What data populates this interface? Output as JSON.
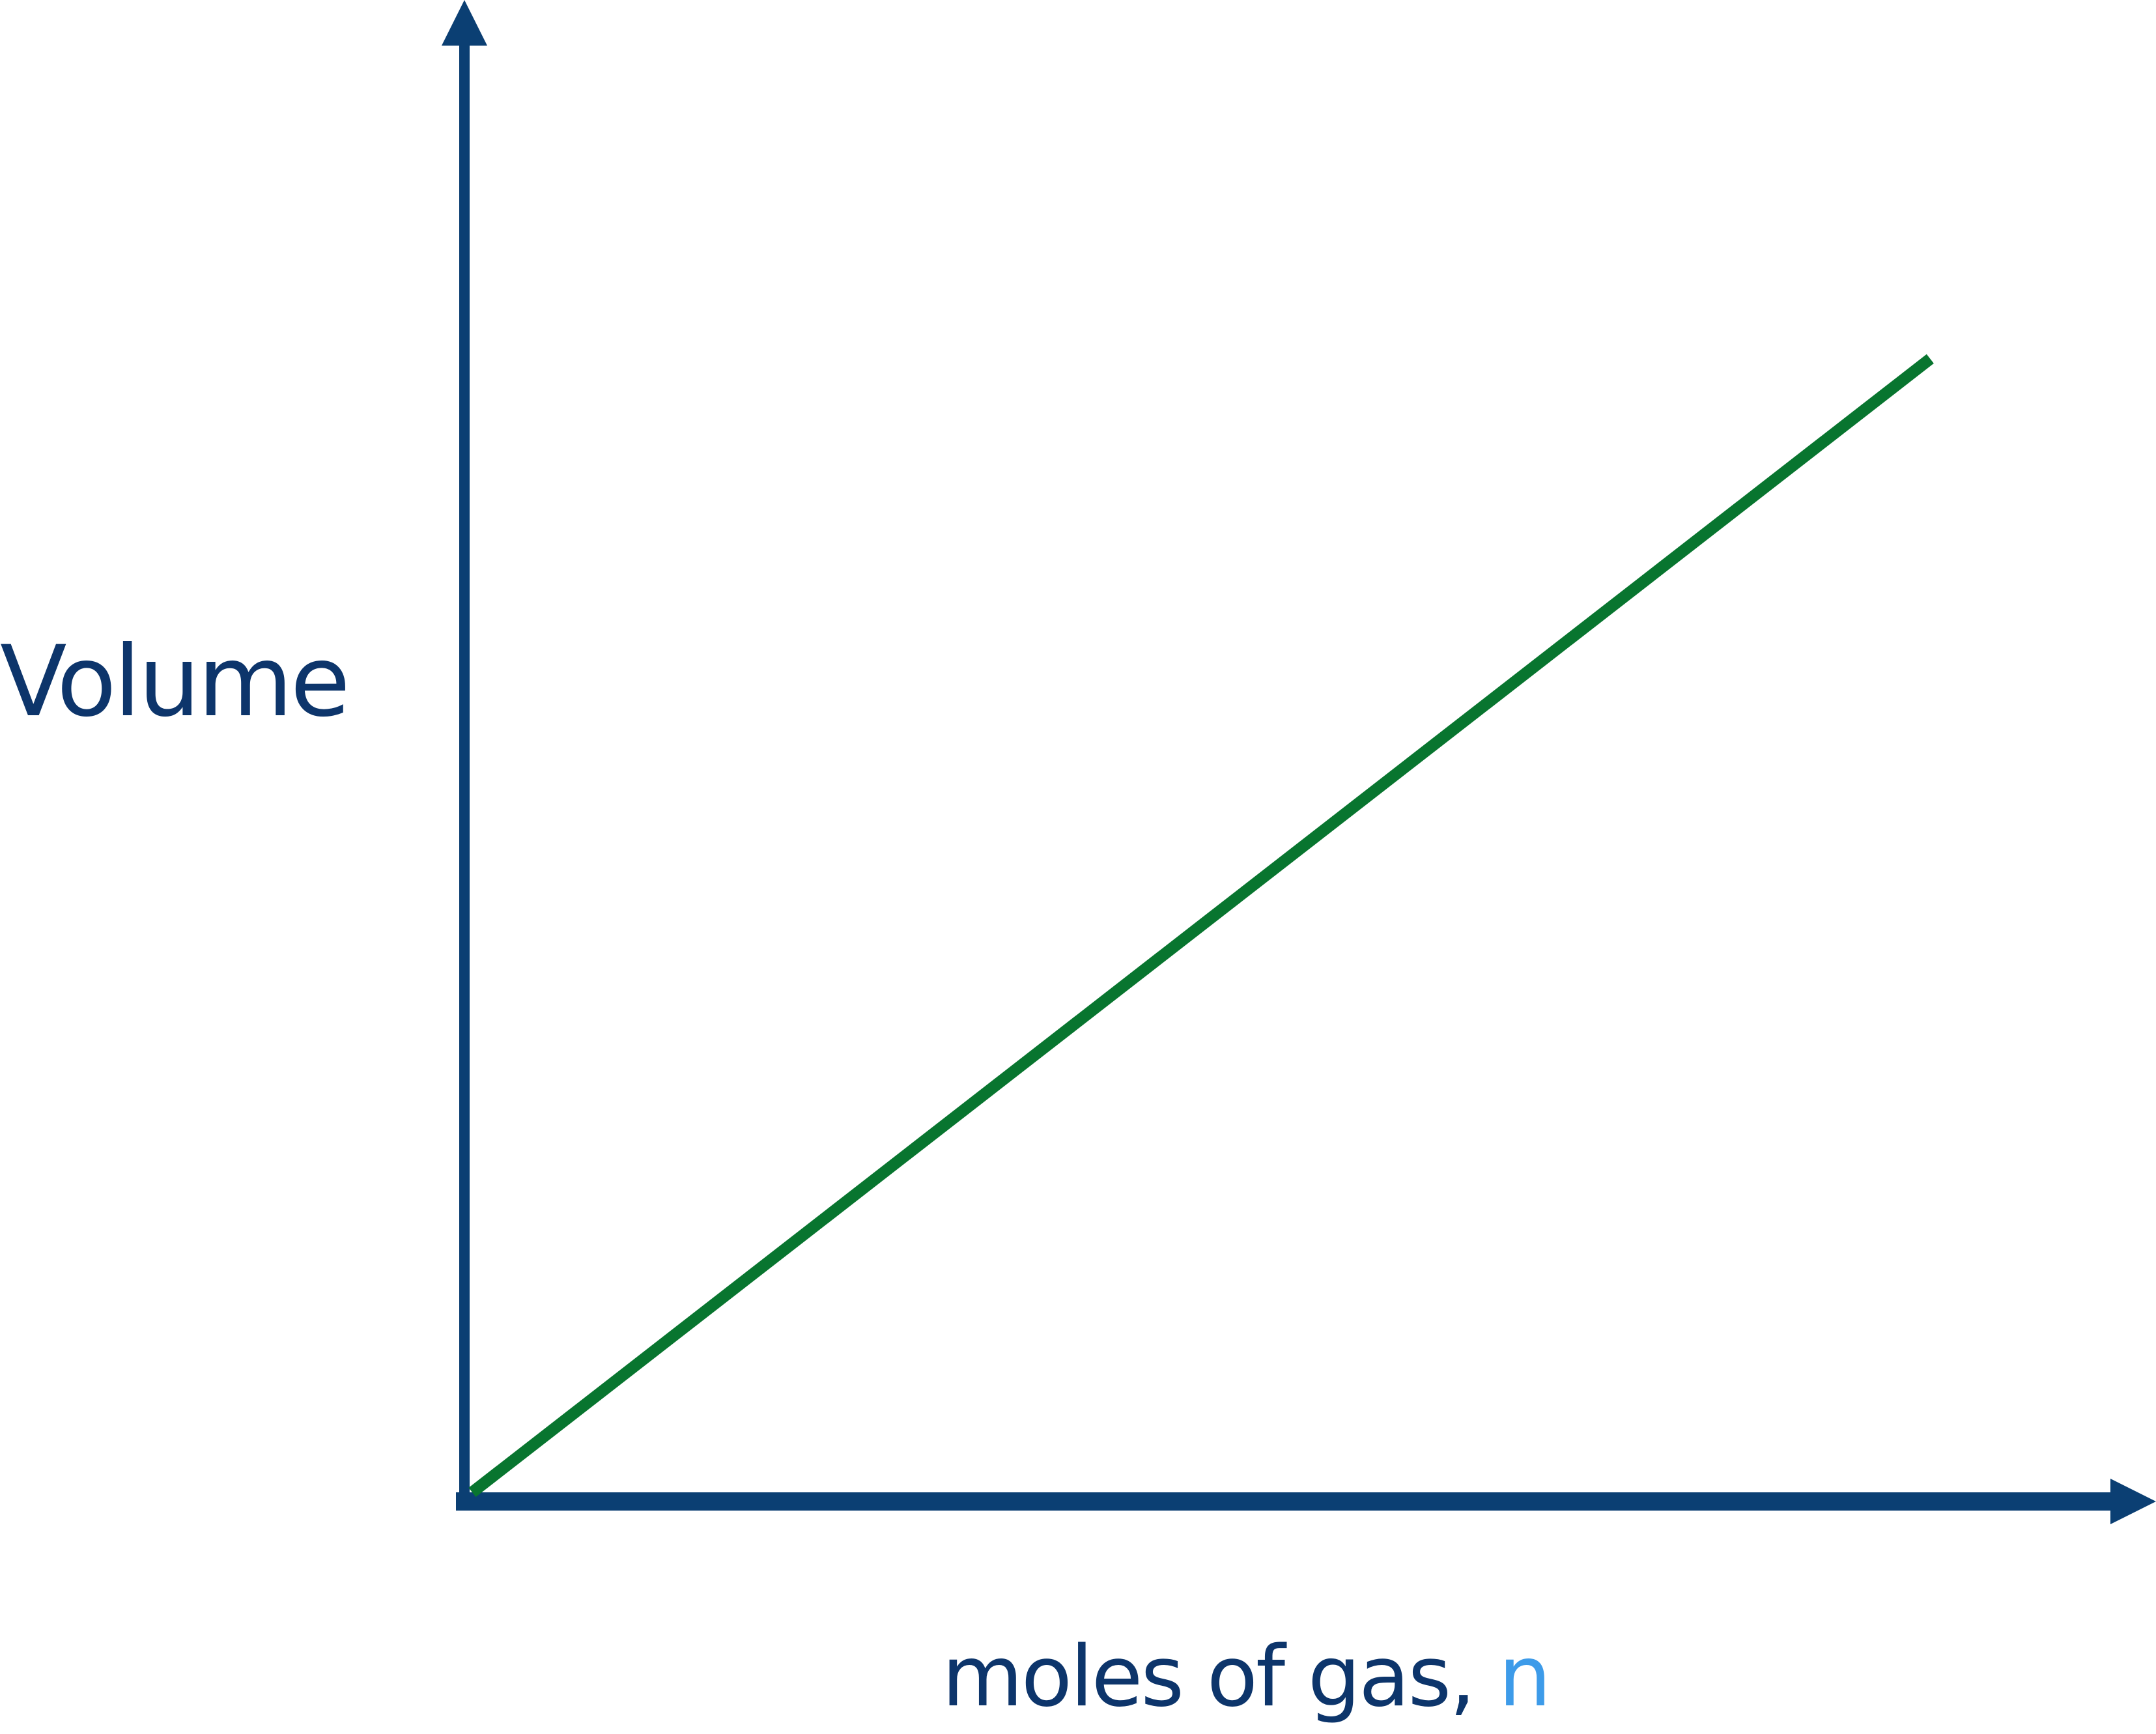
{
  "chart_data": {
    "type": "line",
    "title": "",
    "xlabel": "moles of gas, ",
    "xlabel_variable": "n",
    "ylabel": "Volume",
    "ticks": false,
    "grid": false,
    "legend": "none",
    "xlim": [
      0,
      1
    ],
    "ylim": [
      0,
      1
    ],
    "series": [
      {
        "x": [
          0,
          0.89
        ],
        "y": [
          0,
          0.78
        ]
      }
    ],
    "colors": {
      "axis": "#0b3f73",
      "line": "#08752f",
      "label": "#0d356b",
      "variable": "#3d9be9"
    }
  }
}
